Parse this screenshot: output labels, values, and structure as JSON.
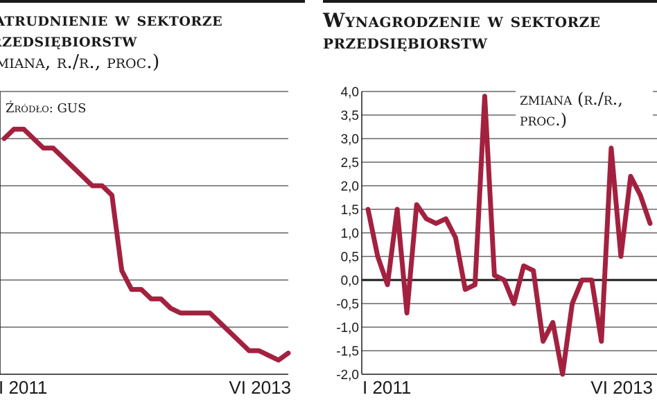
{
  "chart_data": [
    {
      "type": "line",
      "title": "Zatrudnienie w sektorze przedsiębiorstw",
      "subtitle": "(zmiana, r./r., proc.)",
      "source_note": "Źródło: GUS",
      "x_tick_labels": [
        "I 2011",
        "VI 2013"
      ],
      "grid": true,
      "y_tick_labels": [],
      "line_color": "#a3213f",
      "ylim": [
        -1.4,
        4.6
      ],
      "x": [
        "I 2011",
        "II 2011",
        "III 2011",
        "IV 2011",
        "V 2011",
        "VI 2011",
        "VII 2011",
        "VIII 2011",
        "IX 2011",
        "X 2011",
        "XI 2011",
        "XII 2011",
        "I 2012",
        "II 2012",
        "III 2012",
        "IV 2012",
        "V 2012",
        "VI 2012",
        "VII 2012",
        "VIII 2012",
        "IX 2012",
        "X 2012",
        "XI 2012",
        "XII 2012",
        "I 2013",
        "II 2013",
        "III 2013",
        "IV 2013",
        "V 2013",
        "VI 2013"
      ],
      "values": [
        3.6,
        3.8,
        3.8,
        3.6,
        3.4,
        3.4,
        3.2,
        3.0,
        2.8,
        2.6,
        2.6,
        2.4,
        0.8,
        0.4,
        0.4,
        0.2,
        0.2,
        0.0,
        -0.1,
        -0.1,
        -0.1,
        -0.1,
        -0.3,
        -0.5,
        -0.7,
        -0.9,
        -0.9,
        -1.0,
        -1.1,
        -0.95
      ]
    },
    {
      "type": "line",
      "title": "Wynagrodzenie w sektorze przedsiębiorstw",
      "annotation": "zmiana (r./r., proc.)",
      "x_tick_labels": [
        "I 2011",
        "VI 2013"
      ],
      "y_tick_labels": [
        "4,0",
        "3,5",
        "3,0",
        "2,5",
        "2,0",
        "1,5",
        "1,0",
        "0,5",
        "0,0",
        "-0,5",
        "-1,0",
        "-1,5",
        "-2,0"
      ],
      "ylim": [
        -2.0,
        4.0
      ],
      "grid": true,
      "zero_line": true,
      "line_color": "#a3213f",
      "x": [
        "I 2011",
        "II 2011",
        "III 2011",
        "IV 2011",
        "V 2011",
        "VI 2011",
        "VII 2011",
        "VIII 2011",
        "IX 2011",
        "X 2011",
        "XI 2011",
        "XII 2011",
        "I 2012",
        "II 2012",
        "III 2012",
        "IV 2012",
        "V 2012",
        "VI 2012",
        "VII 2012",
        "VIII 2012",
        "IX 2012",
        "X 2012",
        "XI 2012",
        "XII 2012",
        "I 2013",
        "II 2013",
        "III 2013",
        "IV 2013",
        "V 2013",
        "VI 2013"
      ],
      "values": [
        1.5,
        0.5,
        -0.1,
        1.5,
        -0.7,
        1.6,
        1.3,
        1.2,
        1.3,
        0.9,
        -0.2,
        -0.1,
        3.9,
        0.1,
        0.0,
        -0.5,
        0.3,
        0.2,
        -1.3,
        -0.9,
        -2.0,
        -0.5,
        0.0,
        0.0,
        -1.3,
        2.8,
        0.5,
        2.2,
        1.8,
        1.2
      ]
    }
  ]
}
